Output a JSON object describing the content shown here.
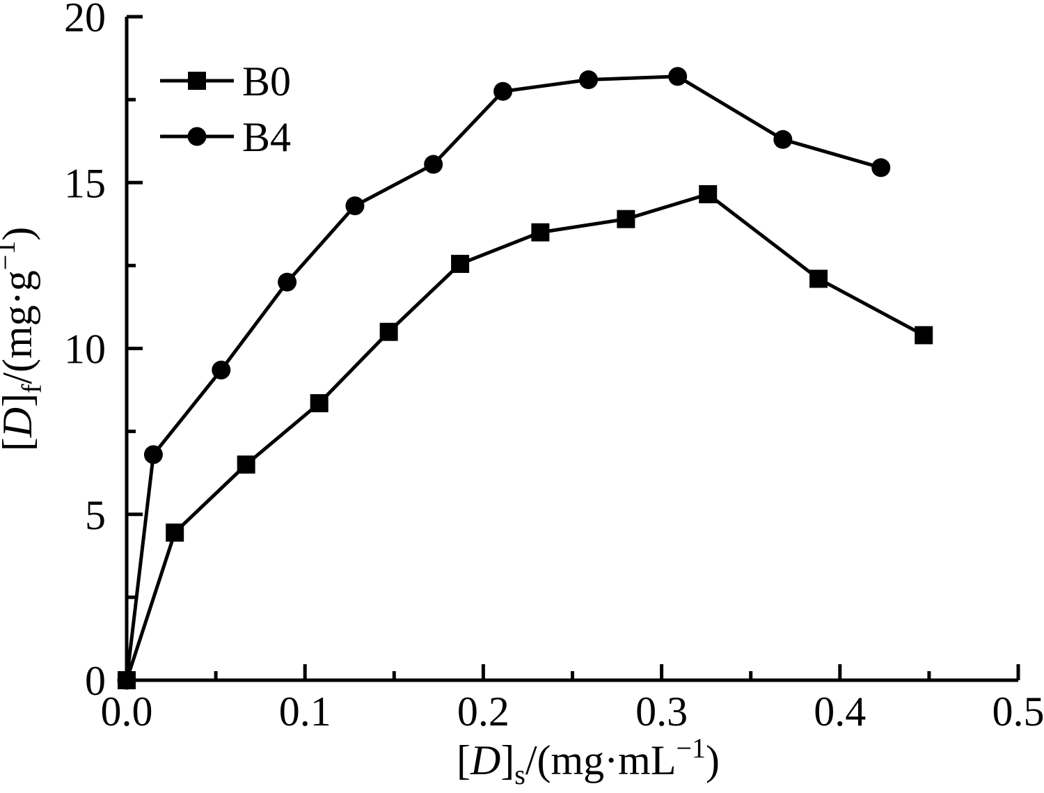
{
  "figure": {
    "background": "#ffffff",
    "ink": "#000000"
  },
  "legend": {
    "position": "upper-left",
    "items": [
      {
        "label": "B0",
        "marker": "square"
      },
      {
        "label": "B4",
        "marker": "circle"
      }
    ]
  },
  "chart_data": {
    "type": "line",
    "title": "",
    "xlabel": "[D]s/(mg·mL−1)",
    "ylabel": "[D]f/(mg·g−1)",
    "xlabel_parts": [
      {
        "t": "[",
        "i": false,
        "v": "base"
      },
      {
        "t": "D",
        "i": true,
        "v": "base"
      },
      {
        "t": "]",
        "i": false,
        "v": "base"
      },
      {
        "t": "s",
        "i": false,
        "v": "sub"
      },
      {
        "t": "/(mg·mL",
        "i": false,
        "v": "base"
      },
      {
        "t": "−1",
        "i": false,
        "v": "sup"
      },
      {
        "t": ")",
        "i": false,
        "v": "base"
      }
    ],
    "ylabel_parts": [
      {
        "t": "[",
        "i": false,
        "v": "base"
      },
      {
        "t": "D",
        "i": true,
        "v": "base"
      },
      {
        "t": "]",
        "i": false,
        "v": "base"
      },
      {
        "t": "f",
        "i": false,
        "v": "sub"
      },
      {
        "t": "/(mg·g",
        "i": false,
        "v": "base"
      },
      {
        "t": "−1",
        "i": false,
        "v": "sup"
      },
      {
        "t": ")",
        "i": false,
        "v": "base"
      }
    ],
    "xlim": [
      0,
      0.5
    ],
    "ylim": [
      0,
      20
    ],
    "x_major_ticks": [
      0,
      0.1,
      0.2,
      0.3,
      0.4,
      0.5
    ],
    "x_tick_labels": [
      "0.0",
      "0.1",
      "0.2",
      "0.3",
      "0.4",
      "0.5"
    ],
    "x_minor_ticks": [
      0.05,
      0.15,
      0.25,
      0.35,
      0.45
    ],
    "y_major_ticks": [
      0,
      5,
      10,
      15,
      20
    ],
    "y_tick_labels": [
      "0",
      "5",
      "10",
      "15",
      "20"
    ],
    "y_minor_ticks": [
      2.5,
      7.5,
      12.5,
      17.5
    ],
    "grid": false,
    "series": [
      {
        "name": "B0",
        "marker": "square",
        "x": [
          0,
          0.027,
          0.067,
          0.108,
          0.147,
          0.187,
          0.232,
          0.28,
          0.326,
          0.388,
          0.447
        ],
        "y": [
          0,
          4.45,
          6.5,
          8.35,
          10.5,
          12.55,
          13.5,
          13.9,
          14.65,
          12.1,
          10.4
        ]
      },
      {
        "name": "B4",
        "marker": "circle",
        "x": [
          0,
          0.015,
          0.053,
          0.09,
          0.128,
          0.172,
          0.211,
          0.259,
          0.309,
          0.368,
          0.423
        ],
        "y": [
          0,
          6.8,
          9.35,
          12.0,
          14.3,
          15.55,
          17.75,
          18.1,
          18.2,
          16.3,
          15.45
        ]
      }
    ]
  }
}
